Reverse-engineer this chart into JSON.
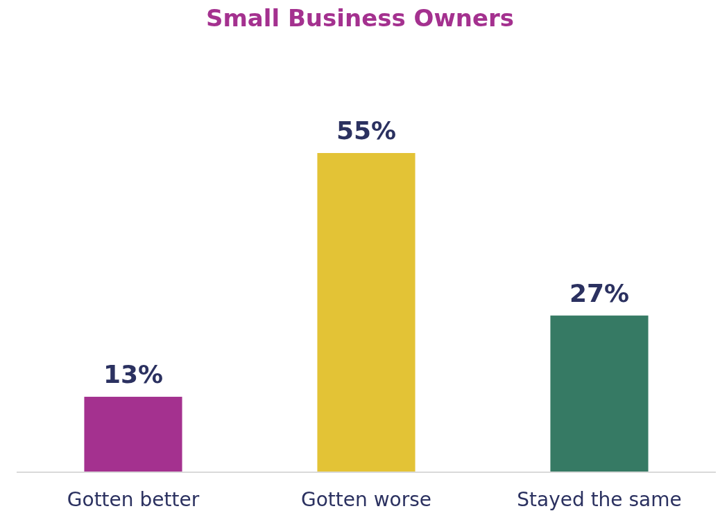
{
  "chart_data": {
    "type": "bar",
    "title": "Small Business Owners",
    "categories": [
      "Gotten better",
      "Gotten worse",
      "Stayed the same"
    ],
    "values": [
      13,
      55,
      27
    ],
    "colors": [
      "#a4318f",
      "#e3c336",
      "#367a64"
    ],
    "value_labels": [
      "13%",
      "55%",
      "27%"
    ]
  }
}
